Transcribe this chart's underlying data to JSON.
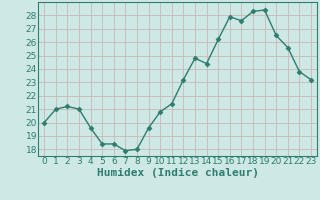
{
  "x": [
    0,
    1,
    2,
    3,
    4,
    5,
    6,
    7,
    8,
    9,
    10,
    11,
    12,
    13,
    14,
    15,
    16,
    17,
    18,
    19,
    20,
    21,
    22,
    23
  ],
  "y": [
    20.0,
    21.0,
    21.2,
    21.0,
    19.6,
    18.4,
    18.4,
    17.9,
    18.0,
    19.6,
    20.8,
    21.4,
    23.2,
    24.8,
    24.4,
    26.2,
    27.9,
    27.6,
    28.3,
    28.4,
    26.5,
    25.6,
    23.8,
    23.2
  ],
  "line_color": "#2e7d6e",
  "marker": "D",
  "markersize": 2.5,
  "linewidth": 1.0,
  "bg_color": "#cde8e5",
  "grid_color": "#c8b8b8",
  "xlabel": "Humidex (Indice chaleur)",
  "ylim": [
    17.5,
    29.0
  ],
  "yticks": [
    18,
    19,
    20,
    21,
    22,
    23,
    24,
    25,
    26,
    27,
    28
  ],
  "xticks": [
    0,
    1,
    2,
    3,
    4,
    5,
    6,
    7,
    8,
    9,
    10,
    11,
    12,
    13,
    14,
    15,
    16,
    17,
    18,
    19,
    20,
    21,
    22,
    23
  ],
  "tick_fontsize": 6.5,
  "xlabel_fontsize": 8,
  "tick_color": "#2e7d6e",
  "axis_color": "#2e7d6e",
  "spine_color": "#2e7d6e"
}
